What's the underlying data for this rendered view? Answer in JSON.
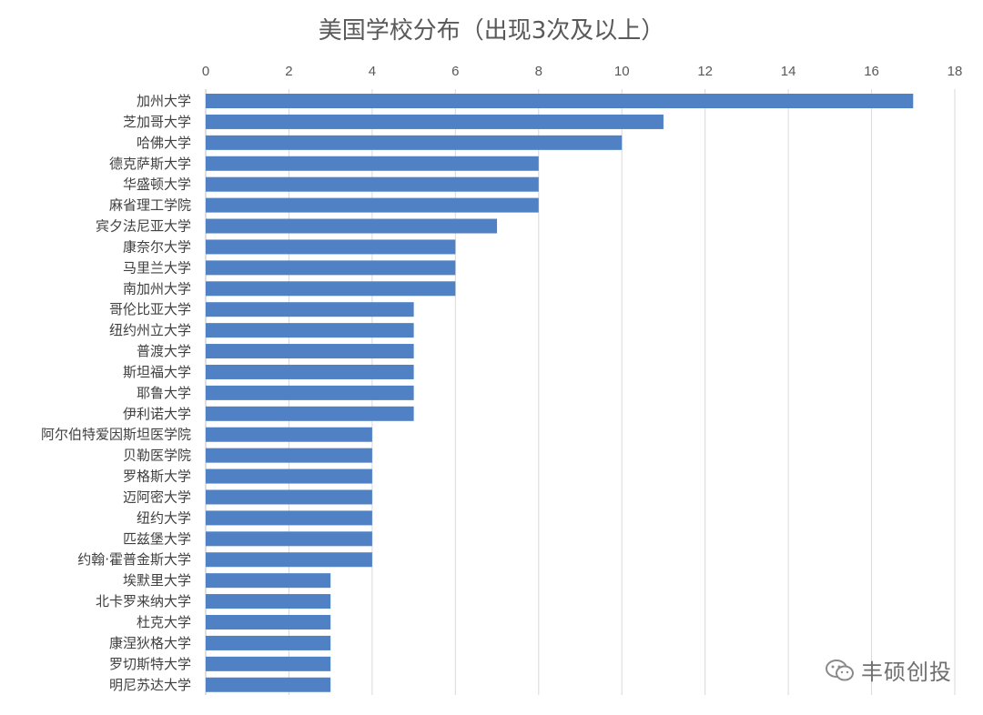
{
  "chart_data": {
    "type": "bar",
    "orientation": "horizontal",
    "title": "美国学校分布（出现3次及以上）",
    "xlim": [
      0,
      18
    ],
    "x_ticks": [
      "0",
      "2",
      "4",
      "6",
      "8",
      "10",
      "12",
      "14",
      "16",
      "18"
    ],
    "x_tick_values": [
      0,
      2,
      4,
      6,
      8,
      10,
      12,
      14,
      16,
      18
    ],
    "x_axis_position": "top",
    "grid": true,
    "color": "#4f81c4",
    "categories": [
      "加州大学",
      "芝加哥大学",
      "哈佛大学",
      "德克萨斯大学",
      "华盛顿大学",
      "麻省理工学院",
      "宾夕法尼亚大学",
      "康奈尔大学",
      "马里兰大学",
      "南加州大学",
      "哥伦比亚大学",
      "纽约州立大学",
      "普渡大学",
      "斯坦福大学",
      "耶鲁大学",
      "伊利诺大学",
      "阿尔伯特爱因斯坦医学院",
      "贝勒医学院",
      "罗格斯大学",
      "迈阿密大学",
      "纽约大学",
      "匹兹堡大学",
      "约翰·霍普金斯大学",
      "埃默里大学",
      "北卡罗来纳大学",
      "杜克大学",
      "康涅狄格大学",
      "罗切斯特大学",
      "明尼苏达大学"
    ],
    "values": [
      17,
      11,
      10,
      8,
      8,
      8,
      7,
      6,
      6,
      6,
      5,
      5,
      5,
      5,
      5,
      5,
      4,
      4,
      4,
      4,
      4,
      4,
      4,
      3,
      3,
      3,
      3,
      3,
      3
    ]
  },
  "watermark": {
    "text": "丰硕创投",
    "icon": "wechat-icon"
  }
}
